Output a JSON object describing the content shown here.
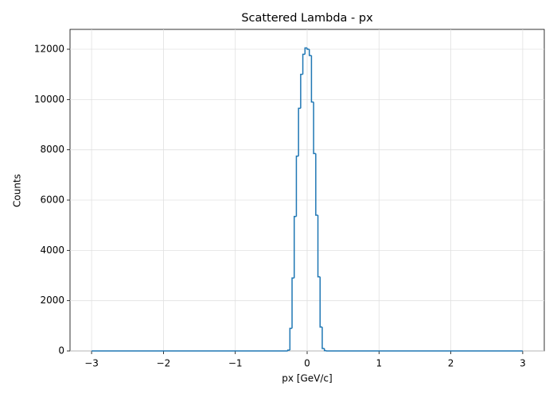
{
  "chart_data": {
    "type": "histogram",
    "title": "Scattered Lambda - px",
    "x_label": "px [GeV/c]",
    "y_label": "Counts",
    "bins": [
      -3,
      -0.27,
      -0.24,
      -0.21,
      -0.18,
      -0.15,
      -0.12,
      -0.09,
      -0.06,
      -0.03,
      0,
      0.03,
      0.06,
      0.09,
      0.12,
      0.15,
      0.18,
      0.21,
      0.24,
      0.27,
      3
    ],
    "values": [
      0,
      30,
      900,
      2900,
      5350,
      7750,
      9650,
      11000,
      11800,
      12050,
      12000,
      11750,
      9900,
      7850,
      5400,
      2950,
      950,
      100,
      10,
      0
    ],
    "color": "#1f77b4",
    "xlim": [
      -3.3,
      3.3
    ],
    "ylim": [
      0,
      12790
    ],
    "xticks": [
      {
        "value": -3,
        "label": "−3"
      },
      {
        "value": -2,
        "label": "−2"
      },
      {
        "value": -1,
        "label": "−1"
      },
      0,
      1,
      2,
      3
    ],
    "yticks": [
      0,
      2000,
      4000,
      6000,
      8000,
      10000,
      12000
    ],
    "grid": true
  }
}
